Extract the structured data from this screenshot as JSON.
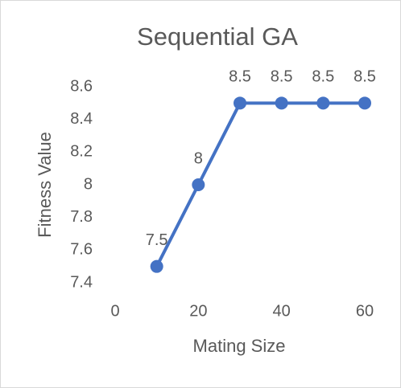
{
  "chart_data": {
    "type": "line",
    "title": "Sequential GA",
    "x_label": "Mating Size",
    "y_label": "Fitness Value",
    "x": [
      10,
      20,
      30,
      40,
      50,
      60
    ],
    "series": [
      {
        "name": "Fitness Value",
        "color": "#4472c4",
        "values": [
          7.5,
          8,
          8.5,
          8.5,
          8.5,
          8.5
        ]
      }
    ],
    "xlim": [
      0,
      60
    ],
    "xticks": [
      0,
      20,
      40,
      60
    ],
    "ylim": [
      7.4,
      8.6
    ],
    "yticks": [
      7.4,
      7.6,
      7.8,
      8,
      8.2,
      8.4,
      8.6
    ],
    "grid": false,
    "data_labels": true
  }
}
